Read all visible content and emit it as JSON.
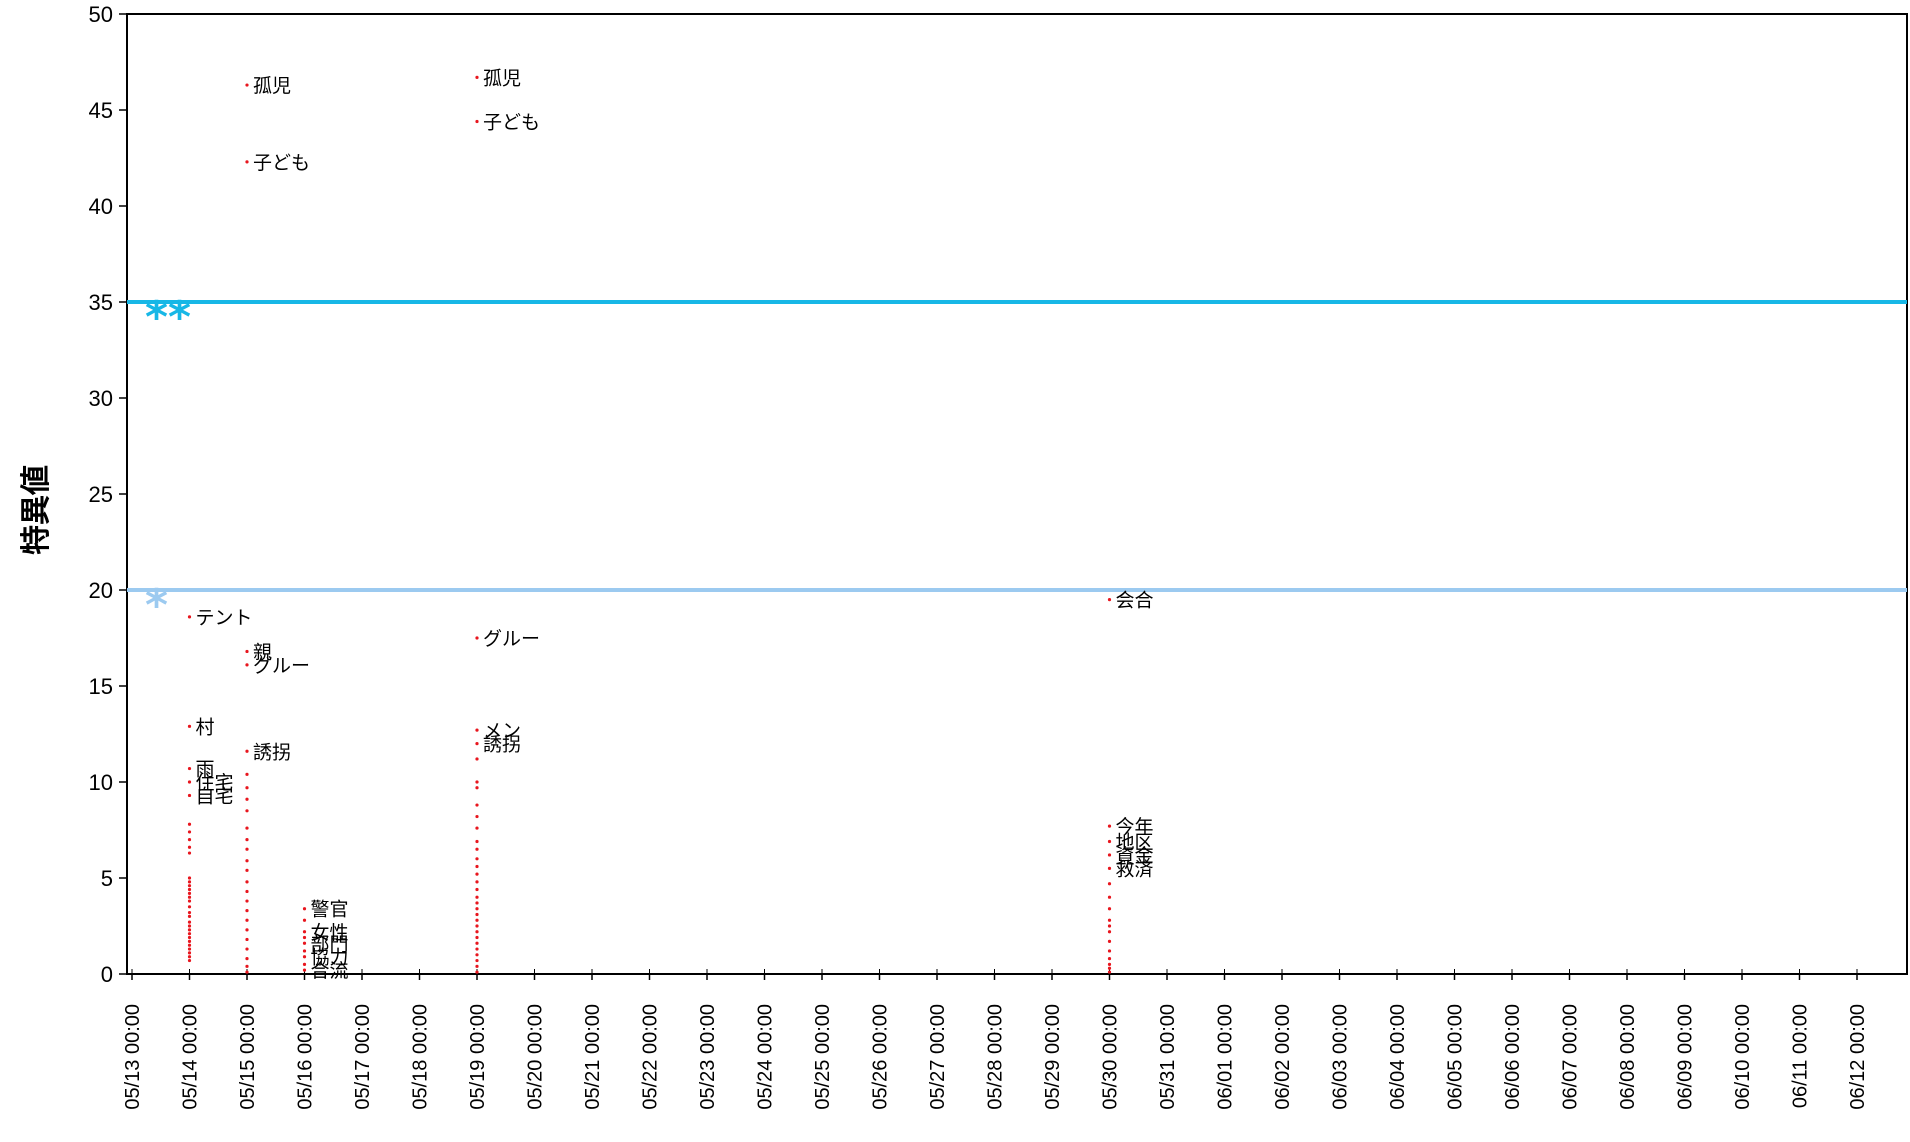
{
  "chart_data": {
    "type": "scatter",
    "ylabel": "特異値",
    "ylim": [
      0,
      50
    ],
    "y_ticks": [
      "0",
      "5",
      "10",
      "15",
      "20",
      "25",
      "30",
      "35",
      "40",
      "45",
      "50"
    ],
    "x_ticks": [
      "05/13 00:00",
      "05/14 00:00",
      "05/15 00:00",
      "05/16 00:00",
      "05/17 00:00",
      "05/18 00:00",
      "05/19 00:00",
      "05/20 00:00",
      "05/21 00:00",
      "05/22 00:00",
      "05/23 00:00",
      "05/24 00:00",
      "05/25 00:00",
      "05/26 00:00",
      "05/27 00:00",
      "05/28 00:00",
      "05/29 00:00",
      "05/30 00:00",
      "05/31 00:00",
      "06/01 00:00",
      "06/02 00:00",
      "06/03 00:00",
      "06/04 00:00",
      "06/05 00:00",
      "06/06 00:00",
      "06/07 00:00",
      "06/08 00:00",
      "06/09 00:00",
      "06/10 00:00",
      "06/11 00:00",
      "06/12 00:00"
    ],
    "grid": false,
    "colors": {
      "points": "#e8161e",
      "threshold_high": "#17b7e6",
      "threshold_low": "#9ccaf0",
      "axis": "#000000"
    },
    "thresholds": [
      {
        "value": 35,
        "label": "**",
        "color": "#17b7e6"
      },
      {
        "value": 20,
        "label": "*",
        "color": "#9ccaf0"
      }
    ],
    "labeled_points": [
      {
        "x": "05/15 00:00",
        "y": 46.3,
        "label": "孤児"
      },
      {
        "x": "05/15 00:00",
        "y": 42.3,
        "label": "子ども"
      },
      {
        "x": "05/19 00:00",
        "y": 46.7,
        "label": "孤児"
      },
      {
        "x": "05/19 00:00",
        "y": 44.4,
        "label": "子ども"
      },
      {
        "x": "05/14 00:00",
        "y": 18.6,
        "label": "テント"
      },
      {
        "x": "05/15 00:00",
        "y": 16.8,
        "label": "親"
      },
      {
        "x": "05/15 00:00",
        "y": 16.1,
        "label": "グルー"
      },
      {
        "x": "05/19 00:00",
        "y": 17.5,
        "label": "グルー"
      },
      {
        "x": "05/30 00:00",
        "y": 19.5,
        "label": "会合"
      },
      {
        "x": "05/14 00:00",
        "y": 12.9,
        "label": "村"
      },
      {
        "x": "05/14 00:00",
        "y": 10.7,
        "label": "雨"
      },
      {
        "x": "05/14 00:00",
        "y": 10.0,
        "label": "住宅"
      },
      {
        "x": "05/14 00:00",
        "y": 9.3,
        "label": "自宅"
      },
      {
        "x": "05/15 00:00",
        "y": 11.6,
        "label": "誘拐"
      },
      {
        "x": "05/19 00:00",
        "y": 12.7,
        "label": "メン"
      },
      {
        "x": "05/19 00:00",
        "y": 12.0,
        "label": "誘拐"
      },
      {
        "x": "05/30 00:00",
        "y": 7.7,
        "label": "今年"
      },
      {
        "x": "05/30 00:00",
        "y": 6.9,
        "label": "地区"
      },
      {
        "x": "05/30 00:00",
        "y": 6.2,
        "label": "資金"
      },
      {
        "x": "05/30 00:00",
        "y": 5.5,
        "label": "救済"
      },
      {
        "x": "05/16 00:00",
        "y": 3.4,
        "label": "警官"
      },
      {
        "x": "05/16 00:00",
        "y": 2.2,
        "label": "女性"
      },
      {
        "x": "05/16 00:00",
        "y": 1.6,
        "label": "部門"
      },
      {
        "x": "05/16 00:00",
        "y": 0.9,
        "label": "協力"
      },
      {
        "x": "05/16 00:00",
        "y": 0.2,
        "label": "合流"
      }
    ],
    "unlabeled_points": [
      {
        "x": "05/14 00:00",
        "y": [
          7.8,
          7.4,
          7.0,
          6.6,
          6.3,
          5.0,
          4.8,
          4.6,
          4.4,
          4.2,
          4.0,
          3.8,
          3.5,
          3.2,
          3.0,
          2.7,
          2.5,
          2.3,
          2.1,
          1.9,
          1.7,
          1.5,
          1.3,
          1.1,
          0.9,
          0.7
        ]
      },
      {
        "x": "05/15 00:00",
        "y": [
          10.4,
          9.7,
          9.1,
          8.5,
          7.6,
          7.0,
          6.5,
          5.9,
          5.4,
          4.8,
          4.3,
          3.8,
          3.3,
          2.8,
          2.3,
          1.8,
          1.3,
          0.8,
          0.4,
          0.1
        ]
      },
      {
        "x": "05/16 00:00",
        "y": [
          2.8,
          1.9,
          1.2,
          0.5
        ]
      },
      {
        "x": "05/19 00:00",
        "y": [
          11.2,
          10.0,
          9.7,
          8.8,
          8.2,
          7.6,
          6.9,
          6.5,
          6.0,
          5.6,
          5.2,
          4.8,
          4.4,
          4.0,
          3.7,
          3.4,
          3.1,
          2.8,
          2.5,
          2.2,
          1.9,
          1.6,
          1.3,
          1.0,
          0.7,
          0.4,
          0.1
        ]
      },
      {
        "x": "05/30 00:00",
        "y": [
          4.7,
          4.0,
          3.4,
          2.8,
          2.5,
          2.2,
          1.7,
          1.2,
          0.8,
          0.5,
          0.3,
          0.1
        ]
      }
    ]
  }
}
